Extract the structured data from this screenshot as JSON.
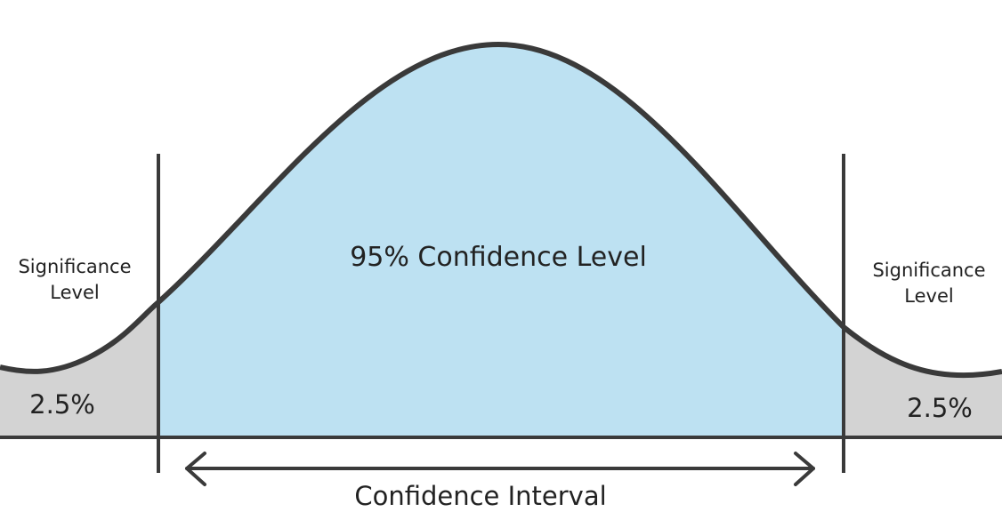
{
  "center_label": "95% Confidence Level",
  "left_tail": {
    "label_line1": "Significance",
    "label_line2": "Level",
    "percent": "2.5%"
  },
  "right_tail": {
    "label_line1": "Significance",
    "label_line2": "Level",
    "percent": "2.5%"
  },
  "interval_label": "Confidence Interval",
  "colors": {
    "center_fill": "#bde1f2",
    "tail_fill": "#d3d3d3",
    "stroke": "#3a3a3a"
  }
}
